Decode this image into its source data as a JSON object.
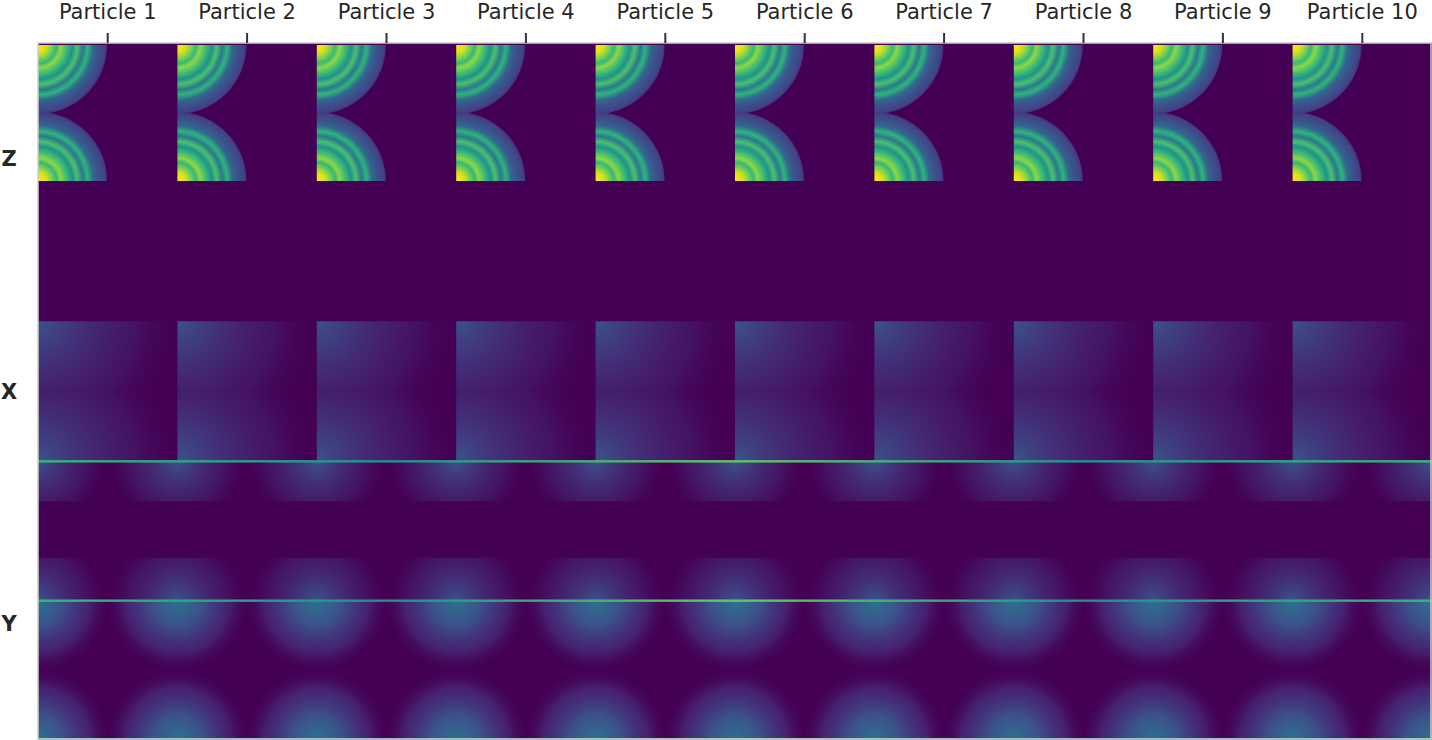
{
  "chart_data": {
    "type": "image_grid",
    "columns": [
      "Particle 1",
      "Particle 2",
      "Particle 3",
      "Particle 4",
      "Particle 5",
      "Particle 6",
      "Particle 7",
      "Particle 8",
      "Particle 9",
      "Particle 10"
    ],
    "rows": [
      "Z",
      "X",
      "Y"
    ]
  }
}
